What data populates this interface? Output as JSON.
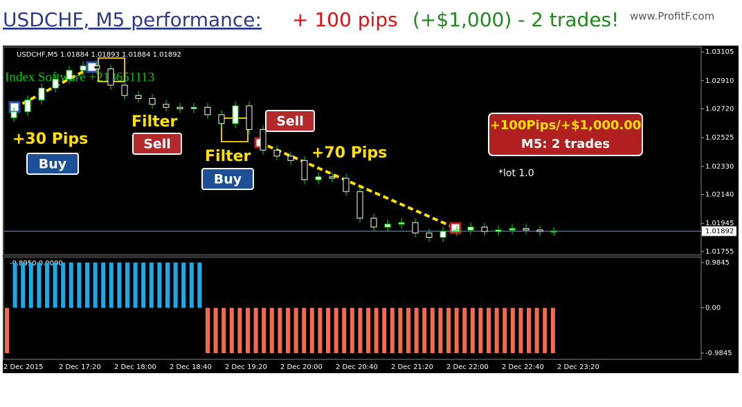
{
  "header": {
    "title": "USDCHF, M5 performance:",
    "pips": "+ 100 pips",
    "result": "(+$1,000) - 2 trades!",
    "watermark": "www.ProfitF.com"
  },
  "chart_data": [
    {
      "type": "candlestick",
      "title": "USDCHF,M5  1.01884 1.01893 1.01884 1.01892",
      "watermark_text": "Index Software +218651113",
      "open": [
        1.0266,
        1.027,
        1.0278,
        1.0286,
        1.0292,
        1.0298,
        1.0301,
        1.0299,
        1.0288,
        1.0281,
        1.0279,
        1.0275,
        1.0273,
        1.0272,
        1.0273,
        1.0268,
        1.0262,
        1.0274,
        1.0258,
        1.0244,
        1.024,
        1.0237,
        1.0224,
        1.0226,
        1.0225,
        1.0216,
        1.0198,
        1.0192,
        1.0194,
        1.0195,
        1.0188,
        1.0185,
        1.0189,
        1.019,
        1.0192,
        1.0189,
        1.019,
        1.0191,
        1.019,
        1.0189
      ],
      "high": [
        1.0273,
        1.0281,
        1.0289,
        1.0295,
        1.0301,
        1.0304,
        1.0304,
        1.0302,
        1.0291,
        1.0284,
        1.0282,
        1.0278,
        1.0276,
        1.0276,
        1.0276,
        1.0271,
        1.0277,
        1.0277,
        1.0261,
        1.0247,
        1.0243,
        1.024,
        1.0229,
        1.0229,
        1.0228,
        1.0219,
        1.0201,
        1.0197,
        1.0198,
        1.0198,
        1.0191,
        1.0192,
        1.0193,
        1.0195,
        1.0195,
        1.0193,
        1.0194,
        1.0194,
        1.0193,
        1.0192
      ],
      "low": [
        1.0263,
        1.0267,
        1.0275,
        1.0283,
        1.0289,
        1.0295,
        1.0296,
        1.0285,
        1.0278,
        1.0276,
        1.0272,
        1.027,
        1.0269,
        1.0269,
        1.0265,
        1.0259,
        1.0259,
        1.0255,
        1.0241,
        1.0237,
        1.0234,
        1.0221,
        1.0221,
        1.0222,
        1.0213,
        1.0195,
        1.0189,
        1.0189,
        1.0191,
        1.0185,
        1.0182,
        1.0182,
        1.0186,
        1.0187,
        1.0186,
        1.0186,
        1.0187,
        1.0187,
        1.0186,
        1.0186
      ],
      "close": [
        1.027,
        1.0278,
        1.0286,
        1.0292,
        1.0298,
        1.0301,
        1.0299,
        1.0288,
        1.0281,
        1.0279,
        1.0275,
        1.0273,
        1.0272,
        1.0273,
        1.0268,
        1.0262,
        1.0274,
        1.0258,
        1.0244,
        1.024,
        1.0237,
        1.0224,
        1.0226,
        1.0225,
        1.0216,
        1.0198,
        1.0192,
        1.0194,
        1.0195,
        1.0188,
        1.0185,
        1.0189,
        1.019,
        1.0192,
        1.0189,
        1.019,
        1.0191,
        1.019,
        1.0189,
        1.0189
      ],
      "categories": [
        "2 Dec 2015",
        "2 Dec 17:20",
        "2 Dec 18:00",
        "2 Dec 18:40",
        "2 Dec 19:20",
        "2 Dec 20:00",
        "2 Dec 20:40",
        "2 Dec 21:20",
        "2 Dec 22:00",
        "2 Dec 22:40",
        "2 Dec 23:20"
      ],
      "ylim": [
        1.01731,
        1.03138
      ],
      "yticks": [
        1.03105,
        {
          "value": 1.0291,
          "label": "1.02910"
        },
        {
          "value": 1.0272,
          "label": "1.02720"
        },
        1.02525,
        {
          "value": 1.0233,
          "label": "1.02330"
        },
        {
          "value": 1.0214,
          "label": "1.02140"
        },
        1.01945,
        1.01755
      ],
      "current_price": 1.01892,
      "annotations": [
        "+30 Pips",
        "Buy",
        "Filter",
        "Sell",
        "Filter",
        "Buy",
        "Sell",
        "+70 Pips",
        "+100Pips/+$1,000.00",
        "M5: 2 trades",
        "*lot 1.0"
      ]
    },
    {
      "type": "histogram_bars",
      "title": "-0.8950 0.0000",
      "values": [
        -0.9845,
        0.9845,
        0.9845,
        0.9845,
        0.9845,
        0.9845,
        0.9845,
        0.9845,
        0.9845,
        0.9845,
        0.9845,
        0.9845,
        0.9845,
        0.9845,
        0.9845,
        0.9845,
        0.9845,
        0.9845,
        0.9845,
        0.9845,
        0.9845,
        0.9845,
        0.9845,
        0.9845,
        0.9845,
        -0.9845,
        -0.9845,
        -0.9845,
        -0.9845,
        -0.9845,
        -0.9845,
        -0.9845,
        -0.9845,
        -0.9845,
        -0.9845,
        -0.9845,
        -0.9845,
        -0.9845,
        -0.9845,
        -0.9845,
        -0.9845,
        -0.9845,
        -0.9845,
        -0.9845,
        -0.9845,
        -0.9845,
        -0.9845,
        -0.9845,
        -0.9845,
        -0.9845,
        -0.9845,
        -0.9845,
        -0.9845,
        -0.9845,
        -0.9845,
        -0.9845,
        -0.9845,
        -0.9845,
        -0.9845,
        -0.9845,
        -0.9845,
        -0.9845,
        -0.9845,
        -0.9845,
        -0.9845,
        -0.9845,
        -0.9845,
        -0.9845,
        -0.9845
      ],
      "up_color": "#1ea8e8",
      "down_color": "#f26b4f",
      "ylim": [
        -1.119,
        1.104
      ],
      "yticks": [
        0.9845,
        {
          "value": 0,
          "label": "0.00"
        },
        -0.9845
      ]
    }
  ]
}
